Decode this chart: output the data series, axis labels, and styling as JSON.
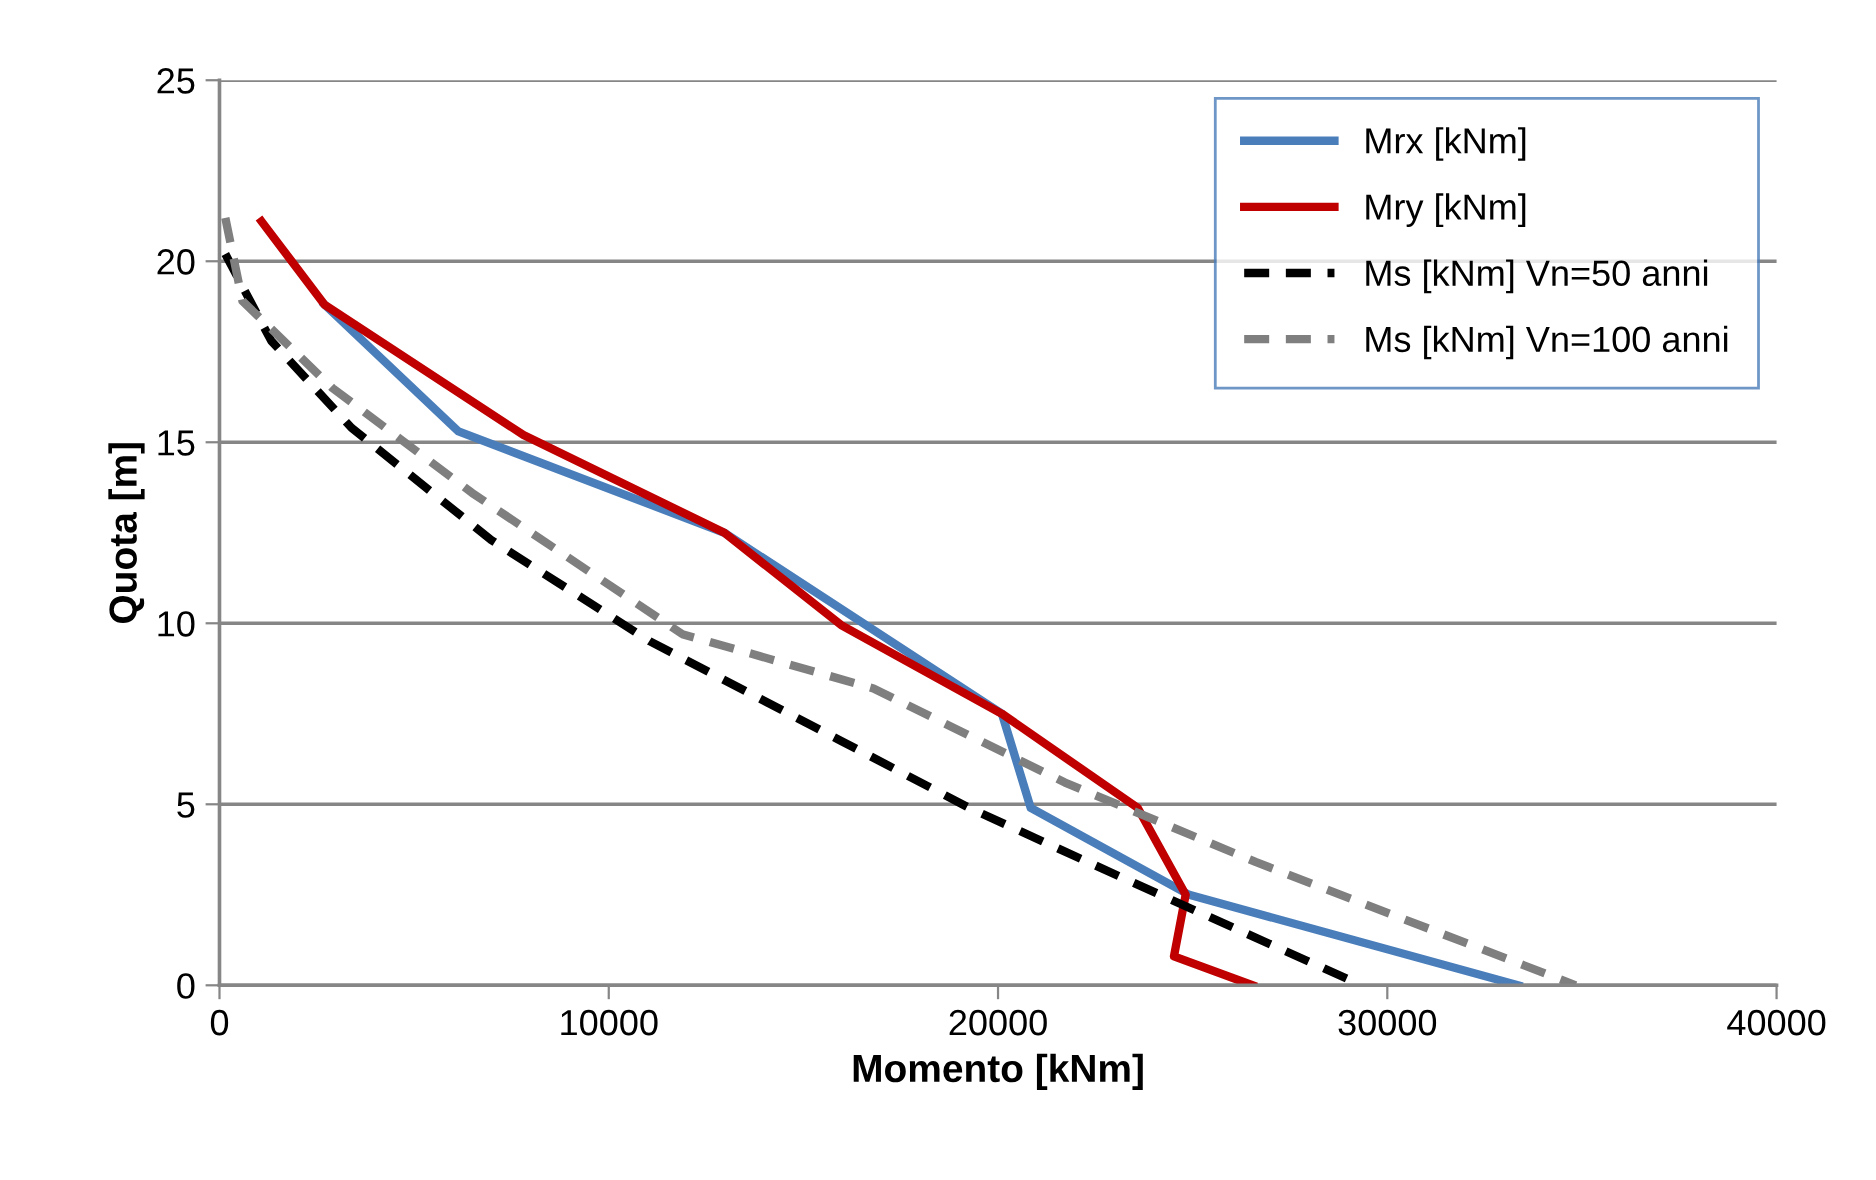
{
  "chart_data": {
    "type": "line",
    "xlabel": "Momento [kNm]",
    "ylabel": "Quota [m]",
    "xlim": [
      0,
      40000
    ],
    "xticks": [
      0,
      10000,
      20000,
      30000,
      40000
    ],
    "ylim": [
      0,
      25
    ],
    "yticks": [
      0,
      5,
      10,
      15,
      20,
      25
    ],
    "grid": "y",
    "legend": "top right",
    "line_style": "solid",
    "series": [
      {
        "name": "Mrx [kNm]",
        "color": "#4a7ebb",
        "x": [
          2700,
          6140,
          12970,
          20100,
          20840,
          24910,
          33370
        ],
        "values": [
          18.8,
          15.3,
          12.5,
          7.5,
          4.9,
          2.5,
          0
        ]
      },
      {
        "name": "Mry [kNm]",
        "color": "#c00000",
        "x": [
          1080,
          2700,
          7810,
          12970,
          15970,
          20100,
          23590,
          24820,
          24520,
          26540
        ],
        "values": [
          21.1,
          18.8,
          15.2,
          12.5,
          9.95,
          7.5,
          4.9,
          2.5,
          0.8,
          0
        ]
      },
      {
        "name": "Ms [kNm] Vn=50 anni",
        "color": "#000000",
        "line_style": "dashed",
        "x": [
          150,
          1330,
          3390,
          6980,
          11060,
          15970,
          19260,
          23340,
          29340
        ],
        "values": [
          20.2,
          17.8,
          15.4,
          12.3,
          9.5,
          6.75,
          4.9,
          2.9,
          0
        ]
      },
      {
        "name": "Ms [kNm] Vn=100 anni",
        "color": "#7f7f7f",
        "line_style": "dashed",
        "x": [
          150,
          590,
          2900,
          6490,
          11890,
          16800,
          21720,
          26630,
          34840
        ],
        "values": [
          21.2,
          18.9,
          16.5,
          13.6,
          9.7,
          8.2,
          5.6,
          3.4,
          0
        ]
      }
    ]
  }
}
